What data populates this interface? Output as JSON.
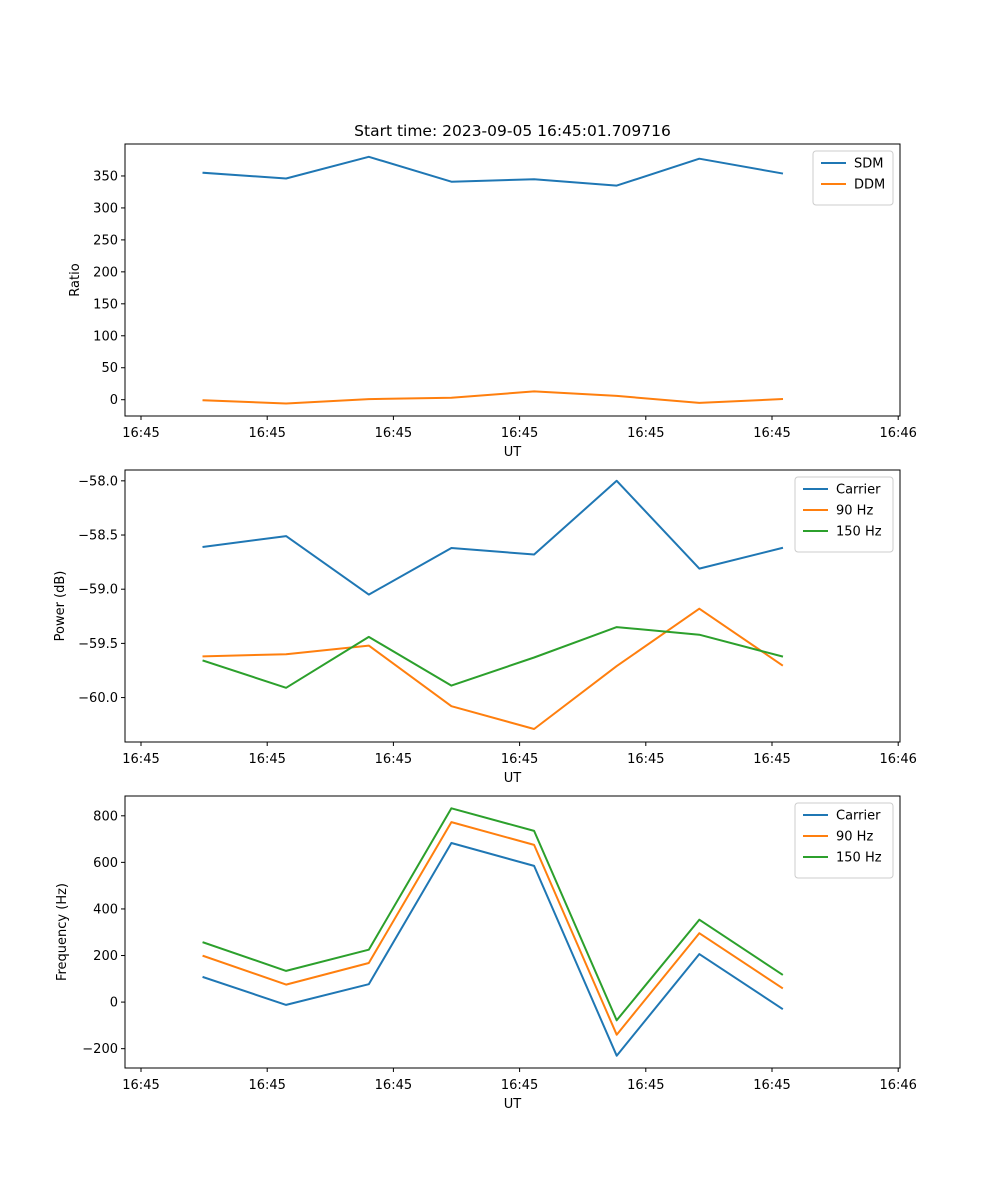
{
  "chart_data": [
    {
      "type": "line",
      "title": "Start time: 2023-09-05 16:45:01.709716",
      "xlabel": "UT",
      "ylabel": "Ratio",
      "x_tick_labels": [
        "16:45",
        "16:45",
        "16:45",
        "16:45",
        "16:45",
        "16:45",
        "16:45",
        "16:46"
      ],
      "y_ticks": [
        0,
        50,
        100,
        150,
        200,
        250,
        300,
        350
      ],
      "ylim": [
        -25.5,
        400
      ],
      "legend_position": "top-right",
      "x_points": [
        1,
        2,
        3,
        4,
        5,
        6,
        7,
        8
      ],
      "series": [
        {
          "name": "SDM",
          "color": "#1f77b4",
          "values": [
            355,
            346,
            380,
            341,
            345,
            335,
            377,
            354
          ]
        },
        {
          "name": "DDM",
          "color": "#ff7f0e",
          "values": [
            -1,
            -6,
            1,
            3,
            13,
            6,
            -5,
            1
          ]
        }
      ]
    },
    {
      "type": "line",
      "title": "",
      "xlabel": "UT",
      "ylabel": "Power (dB)",
      "x_tick_labels": [
        "16:45",
        "16:45",
        "16:45",
        "16:45",
        "16:45",
        "16:45",
        "16:45",
        "16:46"
      ],
      "y_ticks": [
        -58.0,
        -58.5,
        -59.0,
        -59.5,
        -60.0
      ],
      "y_tick_labels": [
        "−58.0",
        "−58.5",
        "−59.0",
        "−59.5",
        "−60.0"
      ],
      "ylim": [
        -60.41,
        -57.9
      ],
      "legend_position": "top-right",
      "x_points": [
        1,
        2,
        3,
        4,
        5,
        6,
        7,
        8
      ],
      "series": [
        {
          "name": "Carrier",
          "color": "#1f77b4",
          "values": [
            -58.61,
            -58.51,
            -59.05,
            -58.62,
            -58.68,
            -58.0,
            -58.81,
            -58.62
          ]
        },
        {
          "name": "90 Hz",
          "color": "#ff7f0e",
          "values": [
            -59.62,
            -59.6,
            -59.52,
            -60.08,
            -60.29,
            -59.71,
            -59.18,
            -59.7
          ]
        },
        {
          "name": "150 Hz",
          "color": "#2ca02c",
          "values": [
            -59.66,
            -59.91,
            -59.44,
            -59.89,
            -59.63,
            -59.35,
            -59.42,
            -59.62
          ]
        }
      ]
    },
    {
      "type": "line",
      "title": "",
      "xlabel": "UT",
      "ylabel": "Frequency (Hz)",
      "x_tick_labels": [
        "16:45",
        "16:45",
        "16:45",
        "16:45",
        "16:45",
        "16:45",
        "16:45",
        "16:46"
      ],
      "y_ticks": [
        -200,
        0,
        200,
        400,
        600,
        800
      ],
      "y_tick_labels": [
        "−200",
        "0",
        "200",
        "400",
        "600",
        "800"
      ],
      "ylim": [
        -283,
        885
      ],
      "legend_position": "top-right",
      "x_points": [
        1,
        2,
        3,
        4,
        5,
        6,
        7,
        8
      ],
      "series": [
        {
          "name": "Carrier",
          "color": "#1f77b4",
          "values": [
            107,
            -12,
            77,
            683,
            585,
            -230,
            206,
            -28
          ]
        },
        {
          "name": "90 Hz",
          "color": "#ff7f0e",
          "values": [
            198,
            75,
            168,
            773,
            675,
            -140,
            296,
            61
          ]
        },
        {
          "name": "150 Hz",
          "color": "#2ca02c",
          "values": [
            256,
            134,
            225,
            832,
            735,
            -78,
            354,
            119
          ]
        }
      ]
    }
  ]
}
